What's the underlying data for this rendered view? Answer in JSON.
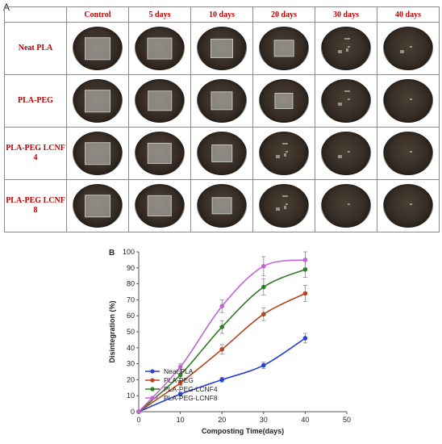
{
  "panel_a": {
    "label": "A",
    "columns": [
      "Control",
      "5 days",
      "10 days",
      "20 days",
      "30 days",
      "40 days"
    ],
    "rows": [
      {
        "label": "Neat PLA",
        "film": [
          1.0,
          0.95,
          0.75,
          0.55,
          0.35,
          0.15
        ]
      },
      {
        "label": "PLA-PEG",
        "film": [
          1.0,
          0.85,
          0.7,
          0.45,
          0.25,
          0.08
        ]
      },
      {
        "label": "PLA-PEG LCNF 4",
        "film": [
          1.0,
          0.9,
          0.6,
          0.35,
          0.18,
          0.05
        ]
      },
      {
        "label": "PLA-PEG LCNF 8",
        "film": [
          1.0,
          0.9,
          0.55,
          0.3,
          0.12,
          0.03
        ]
      }
    ]
  },
  "panel_b_label": "B",
  "chart_data": {
    "type": "line",
    "xlabel": "Composting Time(days)",
    "ylabel": "Disintegration (%)",
    "xlim": [
      0,
      50
    ],
    "ylim": [
      0,
      100
    ],
    "xticks": [
      0,
      10,
      20,
      30,
      40,
      50
    ],
    "yticks": [
      0,
      10,
      20,
      30,
      40,
      50,
      60,
      70,
      80,
      90,
      100
    ],
    "grid": false,
    "legend_position": "bottom-right",
    "x": [
      0,
      10,
      20,
      30,
      40
    ],
    "series": [
      {
        "name": "Neat PLA",
        "color": "#2a3fd6",
        "values": [
          0,
          11,
          20,
          29,
          46
        ],
        "err": [
          0,
          1,
          1.5,
          2,
          3
        ]
      },
      {
        "name": "PLA-PEG",
        "color": "#b5461f",
        "values": [
          0,
          18,
          39,
          61,
          74
        ],
        "err": [
          0,
          1.5,
          3,
          4,
          5
        ]
      },
      {
        "name": "PLA-PEG-LCNF4",
        "color": "#2e7d22",
        "values": [
          0,
          23,
          53,
          78,
          89
        ],
        "err": [
          0,
          2,
          4,
          5,
          5
        ]
      },
      {
        "name": "PLA-PEG-LCNF8",
        "color": "#c462d8",
        "values": [
          0,
          28,
          66,
          91,
          95
        ],
        "err": [
          0,
          2,
          4,
          6,
          5
        ]
      }
    ]
  }
}
